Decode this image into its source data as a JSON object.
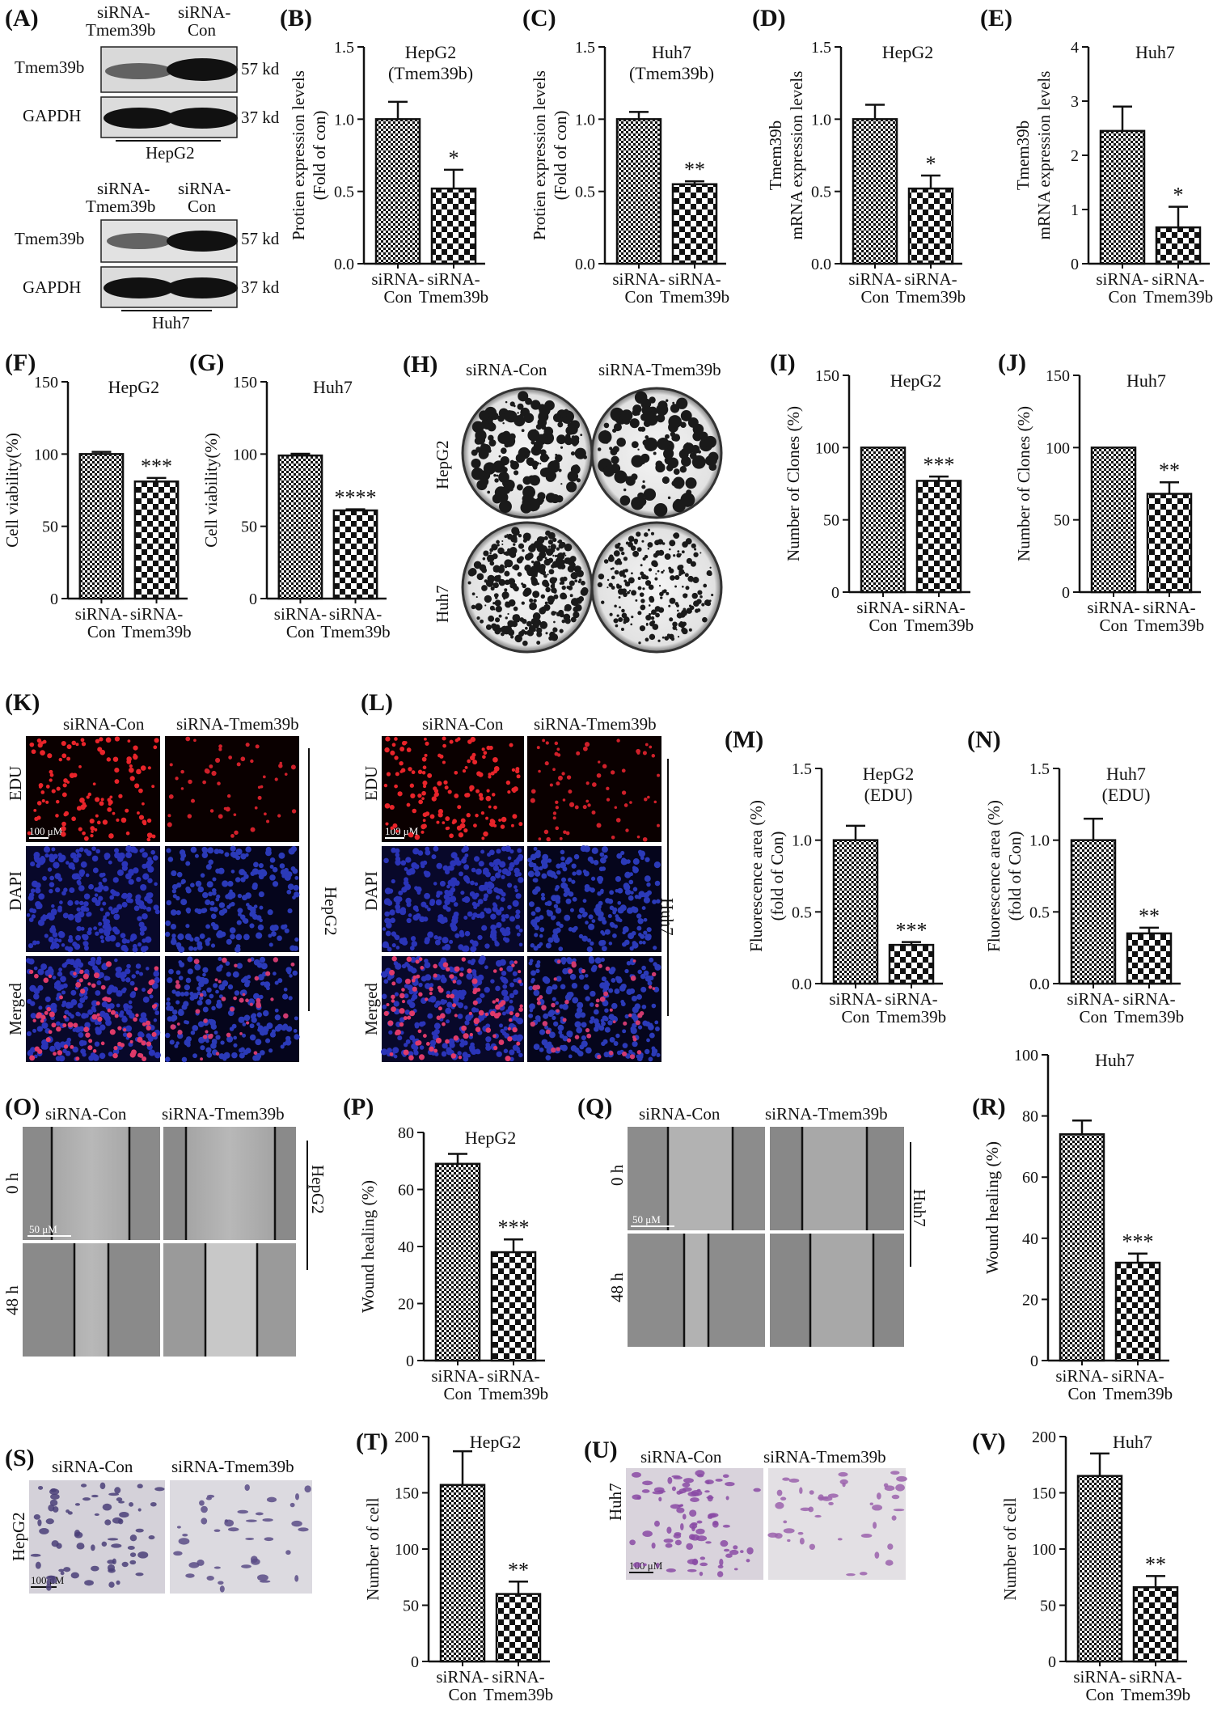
{
  "panel_labels": {
    "A": "(A)",
    "B": "(B)",
    "C": "(C)",
    "D": "(D)",
    "E": "(E)",
    "F": "(F)",
    "G": "(G)",
    "H": "(H)",
    "I": "(I)",
    "J": "(J)",
    "K": "(K)",
    "L": "(L)",
    "M": "(M)",
    "N": "(N)",
    "O": "(O)",
    "P": "(P)",
    "Q": "(Q)",
    "R": "(R)",
    "S": "(S)",
    "T": "(T)",
    "U": "(U)",
    "V": "(V)"
  },
  "categories": [
    "siRNA-Con",
    "siRNA-Tmem39b"
  ],
  "western": {
    "col1": "siRNA-Tmem39b",
    "col2": "siRNA-Con",
    "rows": [
      "Tmem39b",
      "GAPDH"
    ],
    "sizes": [
      "57 kd",
      "37 kd"
    ],
    "cells": [
      "HepG2",
      "Huh7"
    ]
  },
  "colony": {
    "cols": [
      "siRNA-Con",
      "siRNA-Tmem39b"
    ],
    "rows": [
      "HepG2",
      "Huh7"
    ]
  },
  "edu": {
    "cols": [
      "siRNA-Con",
      "siRNA-Tmem39b"
    ],
    "rows": [
      "EDU",
      "DAPI",
      "Merged"
    ],
    "scale": "100 μM",
    "cells": [
      "HepG2",
      "Huh7"
    ]
  },
  "wound": {
    "cols": [
      "siRNA-Con",
      "siRNA-Tmem39b"
    ],
    "rows": [
      "0 h",
      "48 h"
    ],
    "scale": "50 μM",
    "cells": [
      "HepG2",
      "Huh7"
    ]
  },
  "transwell": {
    "cols": [
      "siRNA-Con",
      "siRNA-Tmem39b"
    ],
    "scale": "100 μM",
    "cells": [
      "HepG2",
      "Huh7"
    ]
  },
  "chart_data": [
    {
      "panel": "B",
      "type": "bar",
      "title": [
        "HepG2",
        "(Tmem39b)"
      ],
      "ylabel": [
        "Protien expression levels",
        "(Fold of con)"
      ],
      "categories": [
        "siRNA-Con",
        "siRNA-Tmem39b"
      ],
      "values": [
        1.0,
        0.52
      ],
      "errors": [
        0.12,
        0.13
      ],
      "sig": "*",
      "ylim": [
        0,
        1.5
      ],
      "yticks": [
        "0.0",
        "0.5",
        "1.0",
        "1.5"
      ]
    },
    {
      "panel": "C",
      "type": "bar",
      "title": [
        "Huh7",
        "(Tmem39b)"
      ],
      "ylabel": [
        "Protien expression levels",
        "(Fold of con)"
      ],
      "categories": [
        "siRNA-Con",
        "siRNA-Tmem39b"
      ],
      "values": [
        1.0,
        0.55
      ],
      "errors": [
        0.05,
        0.02
      ],
      "sig": "**",
      "ylim": [
        0,
        1.5
      ],
      "yticks": [
        "0.0",
        "0.5",
        "1.0",
        "1.5"
      ]
    },
    {
      "panel": "D",
      "type": "bar",
      "title": [
        "HepG2"
      ],
      "ylabel": [
        "Tmem39b",
        "mRNA expression levels"
      ],
      "categories": [
        "siRNA-Con",
        "siRNA-Tmem39b"
      ],
      "values": [
        1.0,
        0.52
      ],
      "errors": [
        0.1,
        0.09
      ],
      "sig": "*",
      "ylim": [
        0,
        1.5
      ],
      "yticks": [
        "0.0",
        "0.5",
        "1.0",
        "1.5"
      ]
    },
    {
      "panel": "E",
      "type": "bar",
      "title": [
        "Huh7"
      ],
      "ylabel": [
        "Tmem39b",
        "mRNA expression levels"
      ],
      "categories": [
        "siRNA-Con",
        "siRNA-Tmem39b"
      ],
      "values": [
        2.45,
        0.67
      ],
      "errors": [
        0.45,
        0.38
      ],
      "sig": "*",
      "ylim": [
        0,
        4
      ],
      "yticks": [
        "0",
        "1",
        "2",
        "3",
        "4"
      ]
    },
    {
      "panel": "F",
      "type": "bar",
      "title": [
        "HepG2"
      ],
      "ylabel": [
        "Cell viability(%)"
      ],
      "categories": [
        "siRNA-Con",
        "siRNA-Tmem39b"
      ],
      "values": [
        100,
        81
      ],
      "errors": [
        1.5,
        2.5
      ],
      "sig": "***",
      "ylim": [
        0,
        150
      ],
      "yticks": [
        "0",
        "50",
        "100",
        "150"
      ]
    },
    {
      "panel": "G",
      "type": "bar",
      "title": [
        "Huh7"
      ],
      "ylabel": [
        "Cell viability(%)"
      ],
      "categories": [
        "siRNA-Con",
        "siRNA-Tmem39b"
      ],
      "values": [
        99,
        61
      ],
      "errors": [
        1.2,
        0.8
      ],
      "sig": "****",
      "ylim": [
        0,
        150
      ],
      "yticks": [
        "0",
        "50",
        "100",
        "150"
      ]
    },
    {
      "panel": "I",
      "type": "bar",
      "title": [
        "HepG2"
      ],
      "ylabel": [
        "Number of Clones (%)"
      ],
      "categories": [
        "siRNA-Con",
        "siRNA-Tmem39b"
      ],
      "values": [
        100,
        77
      ],
      "errors": [
        0,
        3
      ],
      "sig": "***",
      "ylim": [
        0,
        150
      ],
      "yticks": [
        "0",
        "50",
        "100",
        "150"
      ]
    },
    {
      "panel": "J",
      "type": "bar",
      "title": [
        "Huh7"
      ],
      "ylabel": [
        "Number of Clones (%)"
      ],
      "categories": [
        "siRNA-Con",
        "siRNA-Tmem39b"
      ],
      "values": [
        100,
        68
      ],
      "errors": [
        0,
        8
      ],
      "sig": "**",
      "ylim": [
        0,
        150
      ],
      "yticks": [
        "0",
        "50",
        "100",
        "150"
      ]
    },
    {
      "panel": "M",
      "type": "bar",
      "title": [
        "HepG2",
        "(EDU)"
      ],
      "ylabel": [
        "Fluorescence area (%)",
        "(fold of Con)"
      ],
      "categories": [
        "siRNA-Con",
        "siRNA-Tmem39b"
      ],
      "values": [
        1.0,
        0.27
      ],
      "errors": [
        0.1,
        0.02
      ],
      "sig": "***",
      "ylim": [
        0,
        1.5
      ],
      "yticks": [
        "0.0",
        "0.5",
        "1.0",
        "1.5"
      ]
    },
    {
      "panel": "N",
      "type": "bar",
      "title": [
        "Huh7",
        "(EDU)"
      ],
      "ylabel": [
        "Fluorescence area (%)",
        "(fold of Con)"
      ],
      "categories": [
        "siRNA-Con",
        "siRNA-Tmem39b"
      ],
      "values": [
        1.0,
        0.35
      ],
      "errors": [
        0.15,
        0.04
      ],
      "sig": "**",
      "ylim": [
        0,
        1.5
      ],
      "yticks": [
        "0.0",
        "0.5",
        "1.0",
        "1.5"
      ]
    },
    {
      "panel": "P",
      "type": "bar",
      "title": [
        "HepG2"
      ],
      "ylabel": [
        "Wound healing (%)"
      ],
      "categories": [
        "siRNA-Con",
        "siRNA-Tmem39b"
      ],
      "values": [
        69,
        38
      ],
      "errors": [
        3.5,
        4.5
      ],
      "sig": "***",
      "ylim": [
        0,
        80
      ],
      "yticks": [
        "0",
        "20",
        "40",
        "60",
        "80"
      ]
    },
    {
      "panel": "R",
      "type": "bar",
      "title": [
        "Huh7"
      ],
      "ylabel": [
        "Wound healing (%)"
      ],
      "categories": [
        "siRNA-Con",
        "siRNA-Tmem39b"
      ],
      "values": [
        74,
        32
      ],
      "errors": [
        4.5,
        3
      ],
      "sig": "***",
      "ylim": [
        0,
        100
      ],
      "yticks": [
        "0",
        "20",
        "40",
        "60",
        "80",
        "100"
      ]
    },
    {
      "panel": "T",
      "type": "bar",
      "title": [
        "HepG2"
      ],
      "ylabel": [
        "Number of cell"
      ],
      "categories": [
        "siRNA-Con",
        "siRNA-Tmem39b"
      ],
      "values": [
        157,
        60
      ],
      "errors": [
        30,
        11
      ],
      "sig": "**",
      "ylim": [
        0,
        200
      ],
      "yticks": [
        "0",
        "50",
        "100",
        "150",
        "200"
      ]
    },
    {
      "panel": "V",
      "type": "bar",
      "title": [
        "Huh7"
      ],
      "ylabel": [
        "Number of cell"
      ],
      "categories": [
        "siRNA-Con",
        "siRNA-Tmem39b"
      ],
      "values": [
        165,
        66
      ],
      "errors": [
        20,
        10
      ],
      "sig": "**",
      "ylim": [
        0,
        200
      ],
      "yticks": [
        "0",
        "50",
        "100",
        "150",
        "200"
      ]
    }
  ]
}
